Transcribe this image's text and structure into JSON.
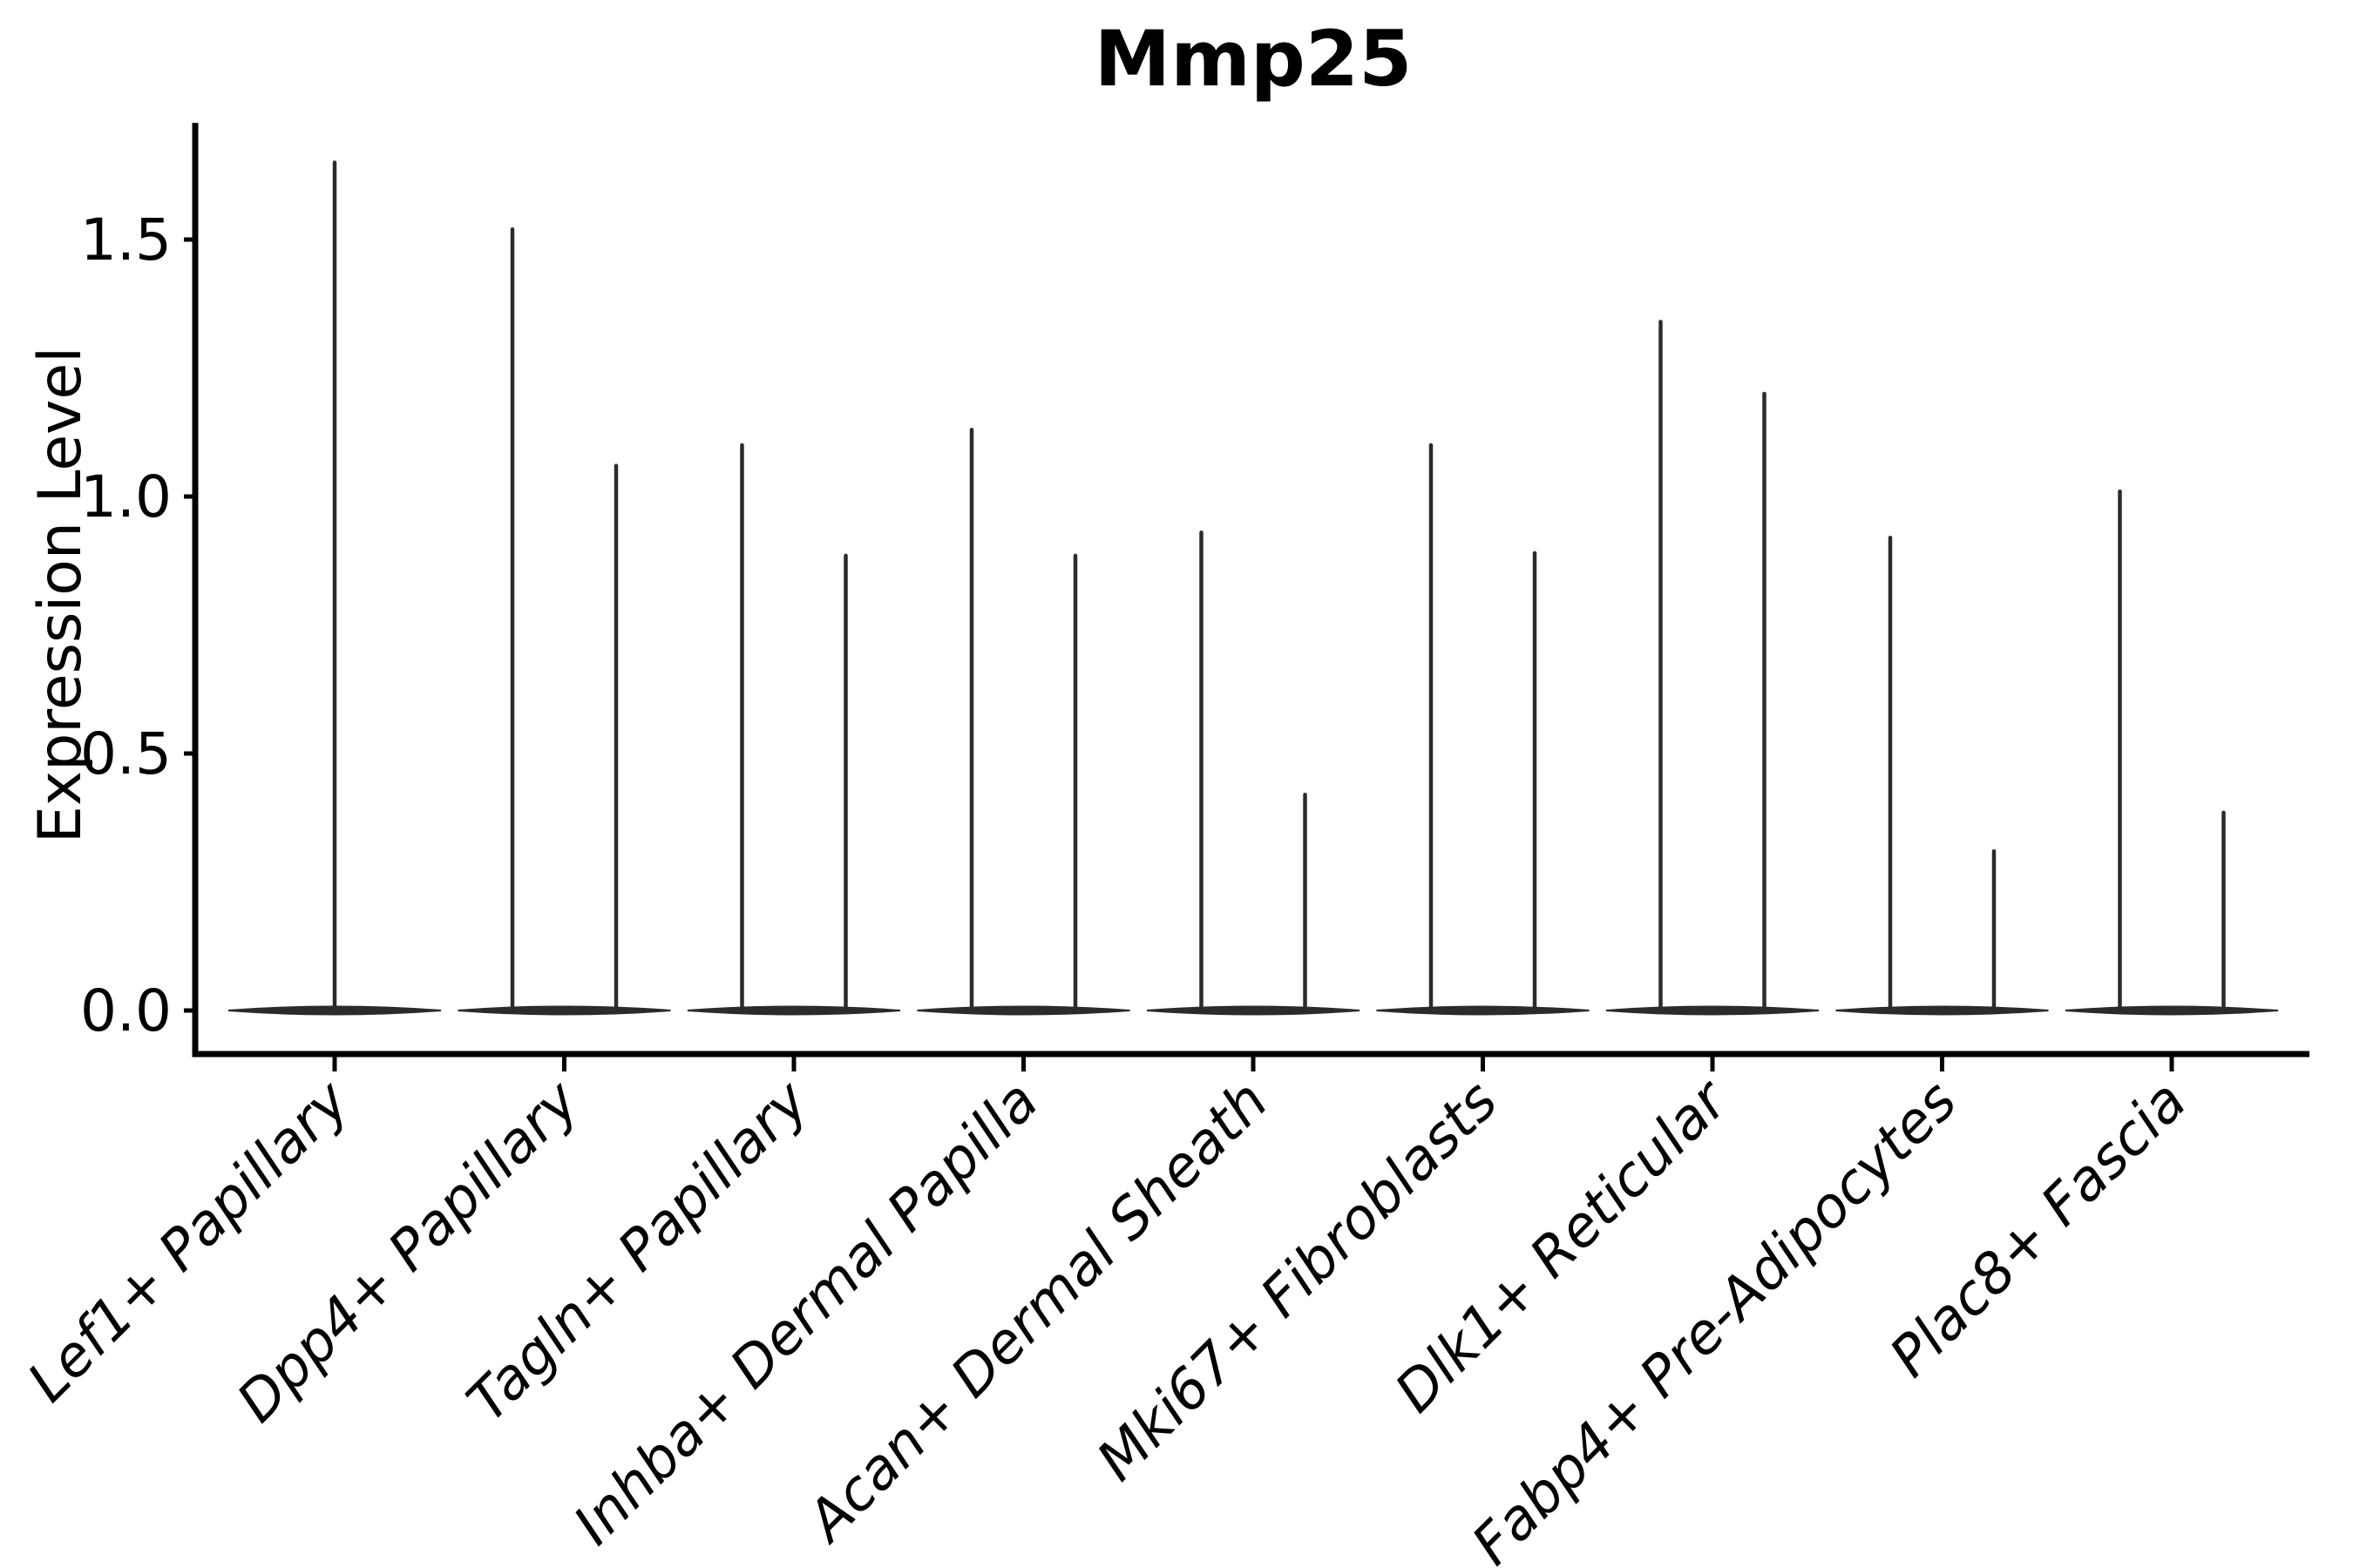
{
  "chart_data": {
    "type": "violin",
    "title": "Mmp25",
    "ylabel": "Expression Level",
    "xlabel": "",
    "categories": [
      "Lef1+ Papillary",
      "Dpp4+ Papillary",
      "Tagln+ Papillary",
      "Inhba+ Dermal Papilla",
      "Acan+ Dermal Sheath",
      "Mki67+ Fibroblasts",
      "Dlk1+ Reticular",
      "Fabp4+ Pre-Adipocytes",
      "Plac8+ Fascia"
    ],
    "y_tick_labels": [
      "0.0",
      "0.5",
      "1.0",
      "1.5"
    ],
    "y_tick_values": [
      0.0,
      0.5,
      1.0,
      1.5
    ],
    "ylim": [
      -0.085,
      1.72
    ],
    "grid": false,
    "legend": null,
    "description": "Violin plot of Mmp25 expression; each category shows a flat dense mass at 0 with thin spikes reaching the maximum expression values (two split violins per category except the first).",
    "series": [
      {
        "category": "Lef1+ Papillary",
        "violin_maxima": [
          1.65
        ]
      },
      {
        "category": "Dpp4+ Papillary",
        "violin_maxima": [
          1.52,
          1.06
        ]
      },
      {
        "category": "Tagln+ Papillary",
        "violin_maxima": [
          1.1,
          0.885
        ]
      },
      {
        "category": "Inhba+ Dermal Papilla",
        "violin_maxima": [
          1.13,
          0.885
        ]
      },
      {
        "category": "Acan+ Dermal Sheath",
        "violin_maxima": [
          0.93,
          0.42
        ]
      },
      {
        "category": "Mki67+ Fibroblasts",
        "violin_maxima": [
          1.1,
          0.89
        ]
      },
      {
        "category": "Dlk1+ Reticular",
        "violin_maxima": [
          1.34,
          1.2
        ]
      },
      {
        "category": "Fabp4+ Pre-Adipocytes",
        "violin_maxima": [
          0.92,
          0.31
        ]
      },
      {
        "category": "Plac8+ Fascia",
        "violin_maxima": [
          1.01,
          0.385
        ]
      }
    ],
    "colors": {
      "violin": "#2b2b2b",
      "axis": "#000000",
      "text": "#000000",
      "background": "#ffffff"
    }
  }
}
